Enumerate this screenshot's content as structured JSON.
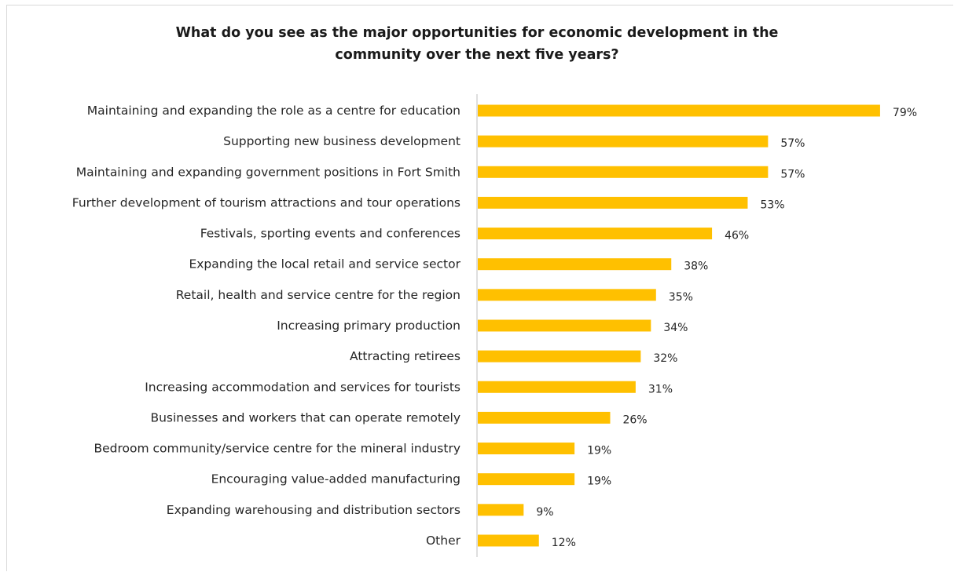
{
  "chart_data": {
    "type": "bar",
    "orientation": "horizontal",
    "title_lines": [
      "What do you see as the major opportunities for economic development in the",
      "community over the next five years?"
    ],
    "categories": [
      "Maintaining and expanding the role as a centre for education",
      "Supporting new business development",
      "Maintaining and expanding government positions in Fort Smith",
      "Further development of tourism attractions and tour operations",
      "Festivals, sporting events and conferences",
      "Expanding the local retail and service sector",
      "Retail, health and service centre for the region",
      "Increasing primary production",
      "Attracting retirees",
      "Increasing accommodation and services for tourists",
      "Businesses and workers that can operate remotely",
      "Bedroom community/service centre for the mineral industry",
      "Encouraging value-added manufacturing",
      "Expanding warehousing and distribution sectors",
      "Other"
    ],
    "values": [
      79,
      57,
      57,
      53,
      46,
      38,
      35,
      34,
      32,
      31,
      26,
      19,
      19,
      9,
      12
    ],
    "value_labels": [
      "79%",
      "57%",
      "57%",
      "53%",
      "46%",
      "38%",
      "35%",
      "34%",
      "32%",
      "31%",
      "26%",
      "19%",
      "19%",
      "9%",
      "12%"
    ],
    "unit": "%",
    "bar_color": "#ffc000",
    "axis_line_color": "#bfbfbf",
    "grid": false,
    "legend": "none"
  }
}
